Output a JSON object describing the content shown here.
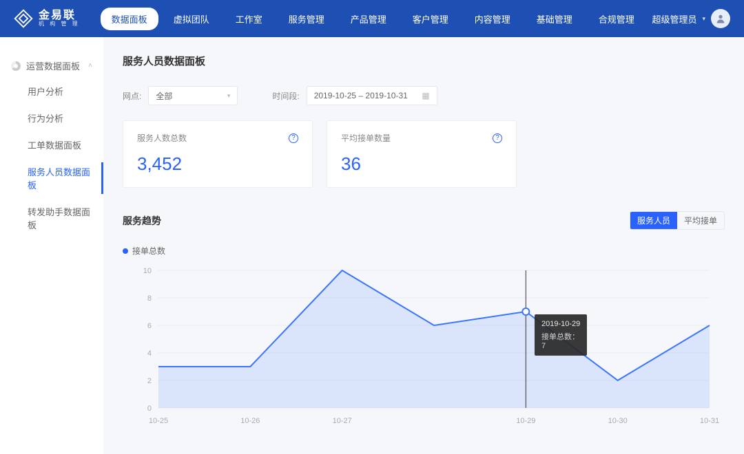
{
  "brand": {
    "name": "金易联",
    "sub": "机 构 管 理"
  },
  "nav": {
    "items": [
      "数据面板",
      "虚拟团队",
      "工作室",
      "服务管理",
      "产品管理",
      "客户管理",
      "内容管理",
      "基础管理",
      "合规管理"
    ],
    "active": 0
  },
  "user": {
    "role": "超级管理员"
  },
  "sidebar": {
    "group": "运营数据面板",
    "items": [
      "用户分析",
      "行为分析",
      "工单数据面板",
      "服务人员数据面板",
      "转发助手数据面板"
    ],
    "active": 3
  },
  "page": {
    "title": "服务人员数据面板"
  },
  "filters": {
    "branch_label": "网点:",
    "branch_value": "全部",
    "range_label": "时间段:",
    "range_value": "2019-10-25 – 2019-10-31"
  },
  "cards": [
    {
      "label": "服务人数总数",
      "value": "3,452"
    },
    {
      "label": "平均接单数量",
      "value": "36"
    }
  ],
  "chart": {
    "title": "服务趋势",
    "toggle": [
      "服务人员",
      "平均接单"
    ],
    "toggle_active": 0,
    "legend": "接单总数",
    "type": "area",
    "x_labels": [
      "10-25",
      "10-26",
      "10-27",
      "",
      "10-29",
      "10-30",
      "10-31"
    ],
    "x_positions": [
      0,
      1,
      2,
      3,
      4,
      5,
      6
    ],
    "values": [
      3,
      3,
      10,
      6,
      7,
      2,
      6
    ],
    "ylim": [
      0,
      10
    ],
    "ytick_step": 2,
    "line_color": "#3a74ff",
    "fill_color": "rgba(58,116,255,0.14)",
    "grid_color": "#e9ecef",
    "axis_text_color": "#a4abb6",
    "marker_index": 4,
    "marker_color": "#ffffff",
    "marker_border": "#3a74ff",
    "background_color": "#ffffff",
    "line_width": 2,
    "label_fontsize": 11
  },
  "tooltip": {
    "date": "2019-10-29",
    "label": "接单总数：",
    "value": "7"
  }
}
